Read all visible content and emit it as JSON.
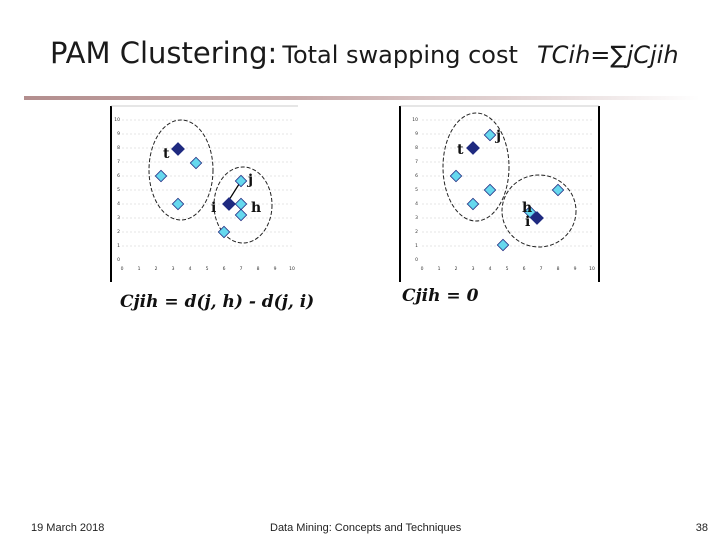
{
  "slide": {
    "title_main": "PAM Clustering:",
    "title_sub": "Total swapping cost",
    "title_formula": "TCih=∑jCjih",
    "formula_left": "Cjih = d(j, h) - d(j, i)",
    "formula_right": "Cjih = 0"
  },
  "footer": {
    "date": "19 March 2018",
    "center": "Data Mining: Concepts and Techniques",
    "page": "38"
  },
  "plots": {
    "y_ticks": [
      "10",
      "9",
      "8",
      "7",
      "6",
      "5",
      "4",
      "3",
      "2",
      "1",
      "0"
    ],
    "left": {
      "x_ticks": [
        "0",
        "1",
        "2",
        "3",
        "4",
        "5",
        "6",
        "7",
        "8",
        "9",
        "10"
      ],
      "labels": {
        "t": "t",
        "i": "i",
        "j": "j",
        "h": "h"
      }
    },
    "right": {
      "x_ticks": [
        "0",
        "1",
        "2",
        "3",
        "4",
        "5",
        "6",
        "7",
        "8",
        "9",
        "10"
      ],
      "labels": {
        "t": "t",
        "j": "j",
        "h": "h",
        "i": "i"
      }
    }
  },
  "colors": {
    "point_fill": "#66d8ee",
    "medoid_fill": "#1f2a80",
    "title_rule": "#b38e8e"
  }
}
